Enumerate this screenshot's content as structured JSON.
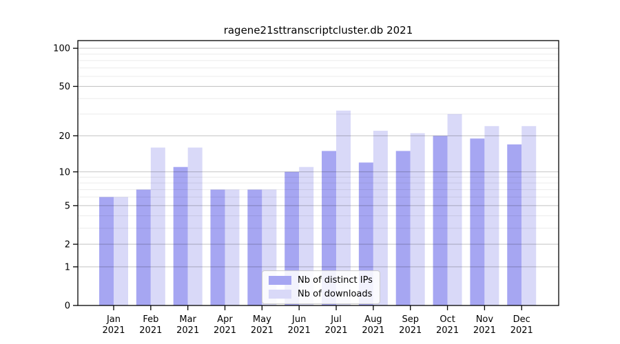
{
  "chart_data": {
    "type": "bar",
    "title": "ragene21sttranscriptcluster.db 2021",
    "xlabel": "",
    "ylabel": "",
    "year_label": "2021",
    "categories": [
      "Jan",
      "Feb",
      "Mar",
      "Apr",
      "May",
      "Jun",
      "Jul",
      "Aug",
      "Sep",
      "Oct",
      "Nov",
      "Dec"
    ],
    "series": [
      {
        "name": "Nb of distinct IPs",
        "color": "#a6a6f2",
        "values": [
          6,
          7,
          11,
          7,
          7,
          10,
          15,
          12,
          15,
          20,
          19,
          17
        ]
      },
      {
        "name": "Nb of downloads",
        "color": "#d9d9f8",
        "values": [
          6,
          16,
          16,
          7,
          7,
          11,
          32,
          22,
          21,
          30,
          24,
          24
        ]
      }
    ],
    "scale": "log1p",
    "ylim": [
      0,
      116
    ],
    "yticks": [
      0,
      1,
      2,
      5,
      10,
      20,
      50,
      100
    ],
    "minor_gridlines": [
      3,
      4,
      6,
      7,
      8,
      9,
      30,
      40,
      60,
      70,
      80,
      90
    ],
    "grid": true,
    "legend_position": "bottom-center",
    "colors": {
      "axis": "#000000",
      "major_grid": "rgba(0,0,0,0.24)",
      "minor_grid": "rgba(0,0,0,0.08)",
      "background": "#ffffff"
    }
  }
}
